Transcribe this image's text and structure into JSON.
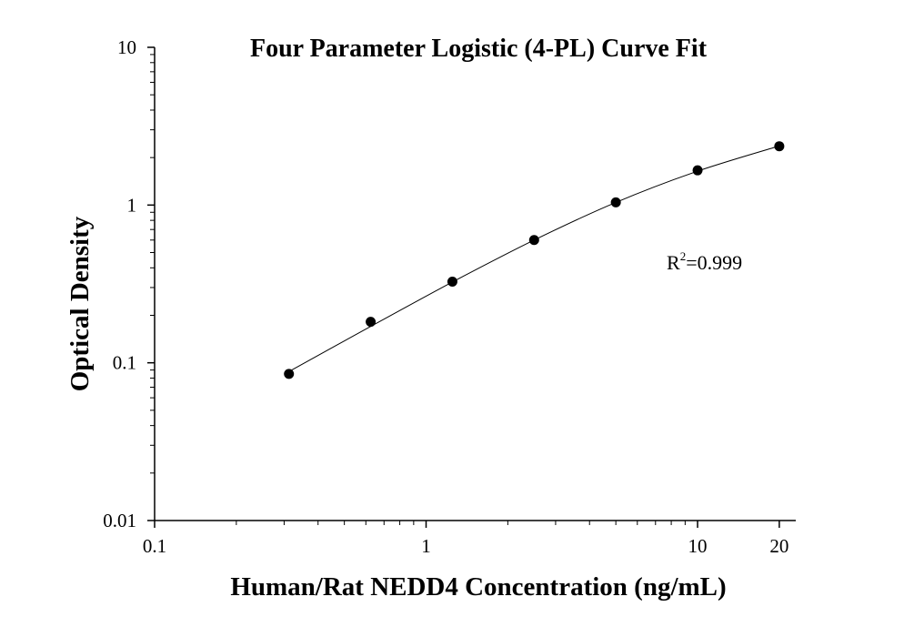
{
  "chart_data": {
    "type": "scatter",
    "title": "Four Parameter Logistic (4-PL) Curve Fit",
    "xlabel": "Human/Rat NEDD4 Concentration (ng/mL)",
    "ylabel": "Optical Density",
    "x_scale": "log",
    "y_scale": "log",
    "xlim": [
      0.1,
      23
    ],
    "ylim": [
      0.01,
      10
    ],
    "x_ticks": [
      {
        "value": 0.1,
        "label": "0.1"
      },
      {
        "value": 1,
        "label": "1"
      },
      {
        "value": 10,
        "label": "10"
      },
      {
        "value": 20,
        "label": "20"
      }
    ],
    "y_ticks": [
      {
        "value": 0.01,
        "label": "0.01"
      },
      {
        "value": 0.1,
        "label": "0.1"
      },
      {
        "value": 1,
        "label": "1"
      },
      {
        "value": 10,
        "label": "10"
      }
    ],
    "points": [
      {
        "x": 0.3125,
        "y": 0.085
      },
      {
        "x": 0.625,
        "y": 0.182
      },
      {
        "x": 1.25,
        "y": 0.327
      },
      {
        "x": 2.5,
        "y": 0.6
      },
      {
        "x": 5,
        "y": 1.04
      },
      {
        "x": 10,
        "y": 1.66
      },
      {
        "x": 20,
        "y": 2.36
      }
    ],
    "fit_curve": {
      "model": "4PL",
      "x": [
        0.3125,
        0.625,
        1.25,
        2.5,
        5,
        10,
        20
      ],
      "y": [
        0.088,
        0.17,
        0.325,
        0.6,
        1.04,
        1.64,
        2.37
      ]
    },
    "annotation": {
      "base": "R",
      "superscript": "2",
      "rest": "=0.999"
    },
    "grid": false,
    "legend": "none",
    "point_color": "#000000",
    "line_color": "#000000"
  }
}
